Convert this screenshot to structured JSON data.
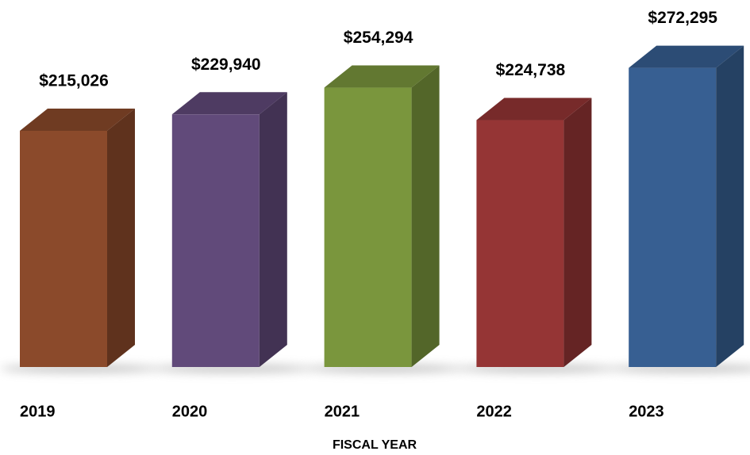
{
  "chart_data": {
    "type": "bar3d",
    "x_label": "FISCAL YEAR",
    "categories": [
      "2019",
      "2020",
      "2021",
      "2022",
      "2023"
    ],
    "values": [
      215026,
      229940,
      254294,
      224738,
      272295
    ],
    "value_labels": [
      "$215,026",
      "$229,940",
      "$254,294",
      "$224,738",
      "$272,295"
    ],
    "colors": [
      "#8b4a2b",
      "#614a7a",
      "#7a963d",
      "#953535",
      "#375f92"
    ]
  }
}
